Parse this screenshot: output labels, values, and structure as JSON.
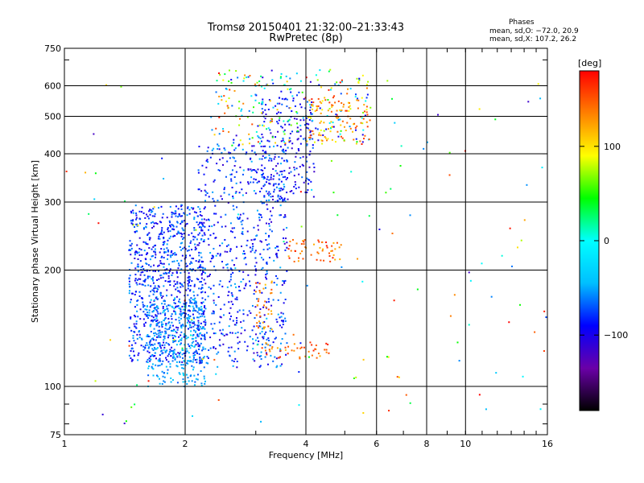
{
  "header": {
    "title_line1": "Tromsø 20150401 21:32:00–21:33:43",
    "title_line2": "RwPretec (8p)",
    "phases_label": "Phases",
    "stats_o": "mean, sd,O: −72.0, 20.9",
    "stats_x": "mean, sd,X: 107.2, 26.2"
  },
  "colorbar": {
    "unit_label": "[deg]",
    "tick_labels": [
      "100",
      "0",
      "−100"
    ],
    "tick_values": [
      100,
      0,
      -100
    ],
    "range": [
      -180,
      180
    ],
    "palette": [
      "#000000",
      "#6a00a8",
      "#0000ff",
      "#00bfff",
      "#00ffff",
      "#00ff00",
      "#ffff00",
      "#ff8000",
      "#ff0000"
    ]
  },
  "chart_data": {
    "type": "scatter",
    "title": "Tromsø 20150401 21:32:00–21:33:43",
    "subtitle": "RwPretec (8p)",
    "xlabel": "Frequency [MHz]",
    "ylabel": "Stationary phase Virtual Height [km]",
    "x_scale": "log",
    "y_scale": "log",
    "xlim": [
      1,
      16
    ],
    "ylim": [
      75,
      750
    ],
    "x_ticks": [
      1,
      2,
      4,
      6,
      8,
      10,
      16
    ],
    "x_tick_labels": [
      "1",
      "2",
      "4",
      "6",
      "8",
      "10",
      "16"
    ],
    "y_ticks": [
      75,
      100,
      200,
      300,
      400,
      500,
      600,
      750
    ],
    "y_tick_labels": [
      "75",
      "100",
      "200",
      "300",
      "400",
      "500",
      "600",
      "750"
    ],
    "grid": true,
    "color_value": "phase [deg]",
    "clusters": [
      {
        "f": [
          1.45,
          2.25
        ],
        "h": [
          115,
          295
        ],
        "phase": [
          -110,
          -50
        ],
        "n": 900
      },
      {
        "f": [
          1.6,
          2.25
        ],
        "h": [
          100,
          170
        ],
        "phase": [
          -70,
          -35
        ],
        "n": 320
      },
      {
        "f": [
          2.15,
          3.6
        ],
        "h": [
          112,
          420
        ],
        "phase": [
          -115,
          -45
        ],
        "n": 650
      },
      {
        "f": [
          3.1,
          4.2
        ],
        "h": [
          300,
          560
        ],
        "phase": [
          -120,
          -60
        ],
        "n": 220
      },
      {
        "f": [
          2.3,
          5.8
        ],
        "h": [
          420,
          660
        ],
        "phase": [
          -110,
          180
        ],
        "n": 260
      },
      {
        "f": [
          3.1,
          4.6
        ],
        "h": [
          118,
          130
        ],
        "phase": [
          110,
          170
        ],
        "n": 45
      },
      {
        "f": [
          3.0,
          3.3
        ],
        "h": [
          140,
          190
        ],
        "phase": [
          110,
          160
        ],
        "n": 35
      },
      {
        "f": [
          3.6,
          4.9
        ],
        "h": [
          210,
          240
        ],
        "phase": [
          115,
          175
        ],
        "n": 55
      },
      {
        "f": [
          4.0,
          5.8
        ],
        "h": [
          430,
          560
        ],
        "phase": [
          90,
          160
        ],
        "n": 90
      },
      {
        "f": [
          1.0,
          16.0
        ],
        "h": [
          80,
          640
        ],
        "phase": [
          -120,
          180
        ],
        "n": 140
      }
    ]
  }
}
